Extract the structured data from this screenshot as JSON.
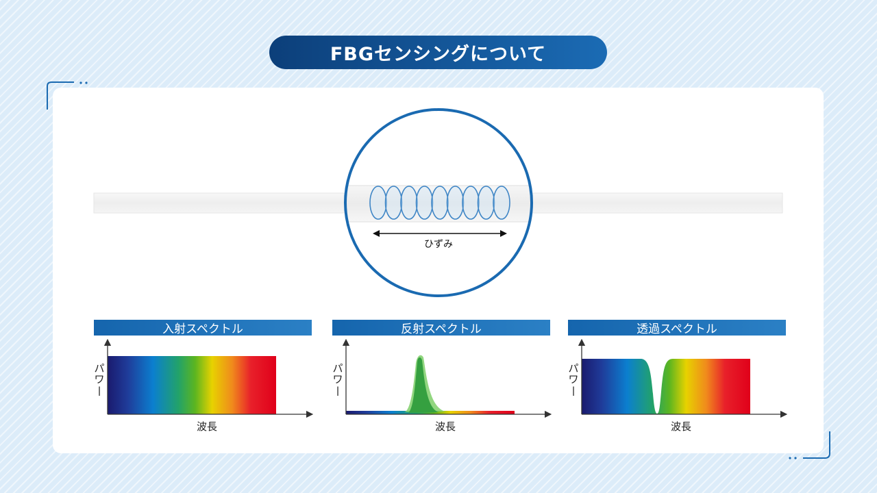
{
  "title": "FBGセンシングについて",
  "fiber": {
    "strain_label": "ひずみ",
    "grating_lines": 9
  },
  "panels": [
    {
      "title": "入射スペクトル",
      "ylabel": "パワー",
      "xlabel": "波長",
      "kind": "incident"
    },
    {
      "title": "反射スペクトル",
      "ylabel": "パワー",
      "xlabel": "波長",
      "kind": "reflected"
    },
    {
      "title": "透過スペクトル",
      "ylabel": "パワー",
      "xlabel": "波長",
      "kind": "transmitted"
    }
  ],
  "colors": {
    "accent": "#1a6ab1",
    "title_bg_start": "#0c3f7a",
    "title_bg_end": "#1b6bb4",
    "spectrum": [
      "#1a1a6e",
      "#1f3c9a",
      "#0b7fcf",
      "#22a26a",
      "#5cb520",
      "#e7d200",
      "#f08a1c",
      "#e8202a",
      "#e0001a"
    ]
  }
}
